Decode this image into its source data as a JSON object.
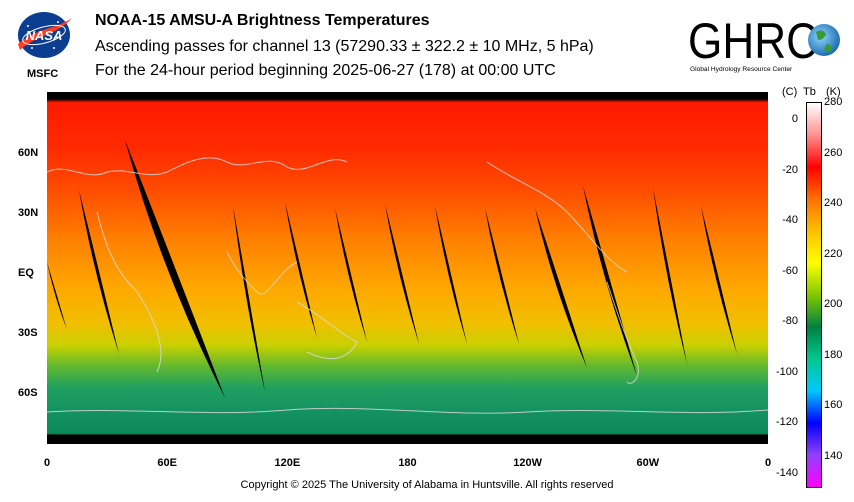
{
  "header": {
    "title": "NOAA-15 AMSU-A Brightness Temperatures",
    "subtitle": "Ascending passes for channel 13 (57290.33 ± 322.2 ± 10 MHz, 5 hPa)",
    "period": "For the 24-hour period beginning 2025-06-27 (178) at 00:00 UTC"
  },
  "logos": {
    "left_text": "NASA",
    "left_caption": "MSFC",
    "right_text": "GHRC",
    "right_caption": "Global Hydrology Resource Center"
  },
  "map": {
    "lat_labels": [
      "60N",
      "30N",
      "EQ",
      "30S",
      "60S"
    ],
    "lat_values": [
      60,
      30,
      0,
      -30,
      -60
    ],
    "lon_labels": [
      "0",
      "60E",
      "120E",
      "180",
      "120W",
      "60W",
      "0"
    ],
    "lon_values": [
      0,
      60,
      120,
      180,
      240,
      300,
      360
    ]
  },
  "colorbar": {
    "header_c": "(C)",
    "header_tb": "Tb",
    "header_k": "(K)",
    "kelvin_ticks": [
      "280",
      "260",
      "240",
      "220",
      "200",
      "180",
      "160",
      "140"
    ],
    "kelvin_values": [
      280,
      260,
      240,
      220,
      200,
      180,
      160,
      140
    ],
    "celsius_ticks": [
      "0",
      "-20",
      "-40",
      "-60",
      "-80",
      "-100",
      "-120",
      "-140"
    ],
    "celsius_values": [
      0,
      -20,
      -40,
      -60,
      -80,
      -100,
      -120,
      -140
    ],
    "range_k": [
      128,
      280
    ],
    "colors": [
      "#ff00ff",
      "#9040ff",
      "#0000ff",
      "#00c8ff",
      "#00c890",
      "#008040",
      "#80c800",
      "#ffff00",
      "#ffc000",
      "#ff7000",
      "#ff0000",
      "#ff9090",
      "#ffffff"
    ]
  },
  "footer": {
    "copyright": "Copyright © 2025 The University of Alabama in Huntsville.  All rights reserved"
  }
}
